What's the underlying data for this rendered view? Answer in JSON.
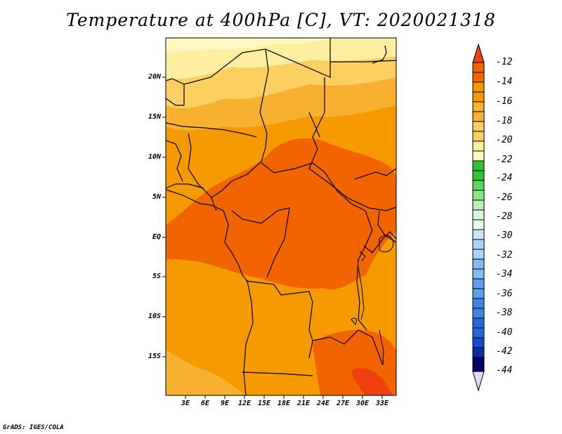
{
  "title": "Temperature at 400hPa [C], VT: 2020021318",
  "credit": "GrADS: IGES/COLA",
  "lat_ticks": [
    "20N",
    "15N",
    "10N",
    "5N",
    "EQ",
    "5S",
    "10S",
    "15S"
  ],
  "lon_ticks": [
    "3E",
    "6E",
    "9E",
    "12E",
    "15E",
    "18E",
    "21E",
    "24E",
    "27E",
    "30E",
    "33E"
  ],
  "colorbar": {
    "labels": [
      "-12",
      "-14",
      "-16",
      "-18",
      "-20",
      "-22",
      "-24",
      "-26",
      "-28",
      "-30",
      "-32",
      "-34",
      "-36",
      "-38",
      "-40",
      "-42",
      "-44"
    ],
    "colors": [
      "#f04010",
      "#f26400",
      "#f59a00",
      "#f8b030",
      "#fbd060",
      "#fdeea0",
      "#fff8c0",
      "#34c234",
      "#5cd85c",
      "#8ae68a",
      "#b8f2b8",
      "#e8fff0",
      "#c8e6fa",
      "#a8d4f6",
      "#80bcf0",
      "#5aa0ec",
      "#3c86e6",
      "#2868da",
      "#1a4cc8",
      "#0c2e9c",
      "#000060",
      "#dcdcf8"
    ]
  },
  "map_colors": {
    "very_warm": "#f04010",
    "warm": "#f26400",
    "mid": "#f59a00",
    "light": "#f8b030",
    "pale": "#fbd060",
    "paler": "#fdeea0"
  }
}
